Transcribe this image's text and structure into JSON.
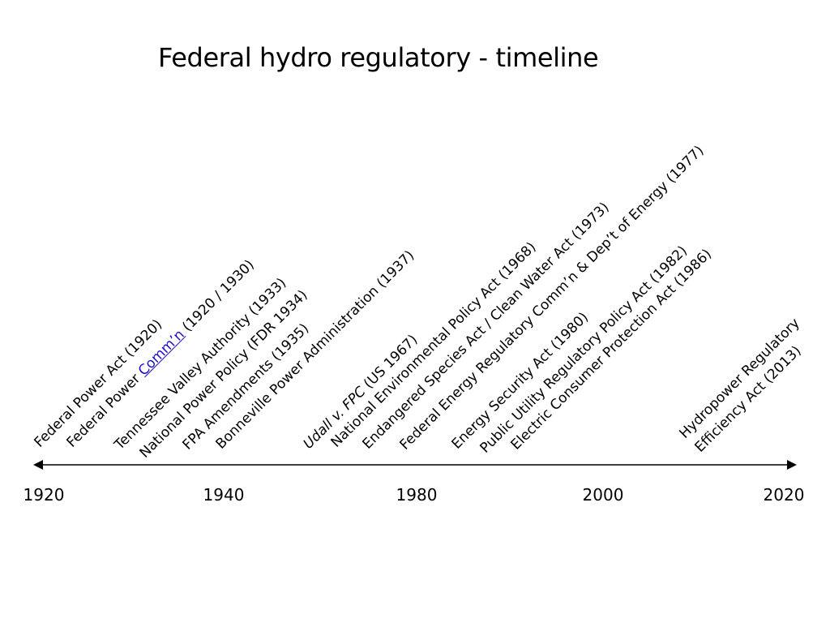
{
  "title": "Federal hydro regulatory - timeline",
  "axis": {
    "line_color": "#000000",
    "ticks": [
      "1920",
      "1940",
      "1980",
      "2000",
      "2020"
    ]
  },
  "events": {
    "e1": {
      "text": "Federal Power Act (1920)"
    },
    "e2": {
      "prefix": "Federal Power ",
      "link": "Comm’n",
      "suffix": " (1920 / 1930)",
      "link_color": "#1a0dcc"
    },
    "e3": {
      "text": "Tennessee Valley Authority (1933)"
    },
    "e4": {
      "text": "National Power Policy (FDR 1934)"
    },
    "e5": {
      "text": "FPA Amendments (1935)"
    },
    "e6": {
      "text": "Bonneville Power Administration (1937)"
    },
    "e7": {
      "italic": "Udall v. FPC",
      "suffix": " (US 1967)"
    },
    "e8": {
      "text": "National Environmental Policy Act (1968)"
    },
    "e9": {
      "text": "Endangered Species Act / Clean Water Act (1973)"
    },
    "e10": {
      "text": "Federal Energy Regulatory Comm’n & Dep’t of Energy (1977)"
    },
    "e11": {
      "text": "Energy Security Act (1980)"
    },
    "e12": {
      "text": "Public Utility Regulatory Policy Act (1982)"
    },
    "e13": {
      "text": "Electric Consumer Protection Act (1986)"
    },
    "e14": {
      "line1": "Hydropower Regulatory",
      "line2": "Efficiency Act (2013)"
    }
  }
}
